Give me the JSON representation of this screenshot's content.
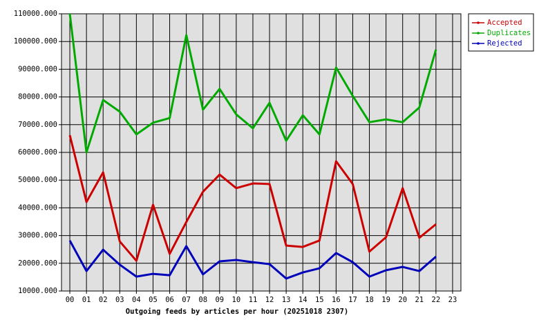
{
  "chart_data": {
    "type": "line",
    "title": "Outgoing feeds by articles per hour (20251018 2307)",
    "categories": [
      "00",
      "01",
      "02",
      "03",
      "04",
      "05",
      "06",
      "07",
      "08",
      "09",
      "10",
      "11",
      "12",
      "13",
      "14",
      "15",
      "16",
      "17",
      "18",
      "19",
      "20",
      "21",
      "22",
      "23"
    ],
    "series": [
      {
        "name": "Accepted",
        "color": "#cc0000",
        "values": [
          66200,
          42100,
          52800,
          27900,
          20900,
          41100,
          23400,
          34900,
          45800,
          52000,
          47100,
          48800,
          48600,
          26400,
          25900,
          28200,
          56800,
          48600,
          24200,
          29400,
          47100,
          29200,
          34100,
          null
        ]
      },
      {
        "name": "Duplicates",
        "color": "#00aa00",
        "values": [
          110000,
          60000,
          78900,
          74700,
          66500,
          70700,
          72400,
          102300,
          75400,
          82900,
          73700,
          68700,
          77900,
          64200,
          73400,
          66500,
          90600,
          80400,
          70900,
          71900,
          70900,
          76200,
          97100,
          null
        ]
      },
      {
        "name": "Rejected",
        "color": "#0000bb",
        "values": [
          28200,
          17200,
          24900,
          19500,
          15200,
          16200,
          15700,
          26200,
          16000,
          20700,
          21200,
          20400,
          19700,
          14500,
          16700,
          18200,
          23700,
          20400,
          15200,
          17500,
          18700,
          17200,
          22400,
          null
        ]
      }
    ],
    "ylim": [
      10000,
      110000
    ],
    "yticks": [
      {
        "value": 10000,
        "label": "10000.000"
      },
      {
        "value": 20000,
        "label": "20000.000"
      },
      {
        "value": 30000,
        "label": "30000.000"
      },
      {
        "value": 40000,
        "label": "40000.000"
      },
      {
        "value": 50000,
        "label": "50000.000"
      },
      {
        "value": 60000,
        "label": "60000.000"
      },
      {
        "value": 70000,
        "label": "70000.000"
      },
      {
        "value": 80000,
        "label": "80000.000"
      },
      {
        "value": 90000,
        "label": "90000.000"
      },
      {
        "value": 100000,
        "label": "100000.000"
      },
      {
        "value": 110000,
        "label": "110000.000"
      }
    ],
    "grid": true,
    "legend": "right"
  }
}
